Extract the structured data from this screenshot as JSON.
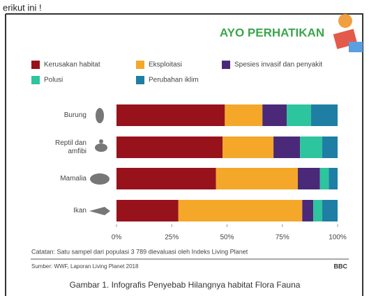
{
  "intro_text": "erikut ini !",
  "caption": "Gambar 1. Infografis Penyebab Hilangnya  habitat Flora Fauna",
  "chart_data": {
    "type": "stacked-bar-horizontal",
    "title": "AYO PERHATIKAN",
    "note": "Catatan: Satu sampel dari populasi 3 789 dievaluasi oleh Indeks Living Planet",
    "source": "Sumber: WWF, Laporan Living Planet 2018",
    "logo": "BBC",
    "categories": [
      "Burung",
      "Reptil dan amfibi",
      "Mamalia",
      "Ikan"
    ],
    "series": [
      {
        "name": "Kerusakan habitat",
        "color": "#97121b",
        "values": [
          49,
          48,
          45,
          28
        ]
      },
      {
        "name": "Eksploitasi",
        "color": "#f5a729",
        "values": [
          17,
          23,
          37,
          56
        ]
      },
      {
        "name": "Spesies invasif dan penyakit",
        "color": "#4a2a78",
        "values": [
          11,
          12,
          10,
          5
        ]
      },
      {
        "name": "Polusi",
        "color": "#2cc59e",
        "values": [
          11,
          10,
          4,
          4
        ]
      },
      {
        "name": "Perubahan iklim",
        "color": "#1e7ea4",
        "values": [
          12,
          7,
          4,
          7
        ]
      }
    ],
    "xlim": [
      0,
      100
    ],
    "xticks": [
      {
        "value": 0,
        "label": "0%"
      },
      {
        "value": 25,
        "label": "25%"
      },
      {
        "value": 50,
        "label": "50%"
      },
      {
        "value": 75,
        "label": "75%"
      },
      {
        "value": 100,
        "label": "100%"
      }
    ],
    "grid": false
  }
}
